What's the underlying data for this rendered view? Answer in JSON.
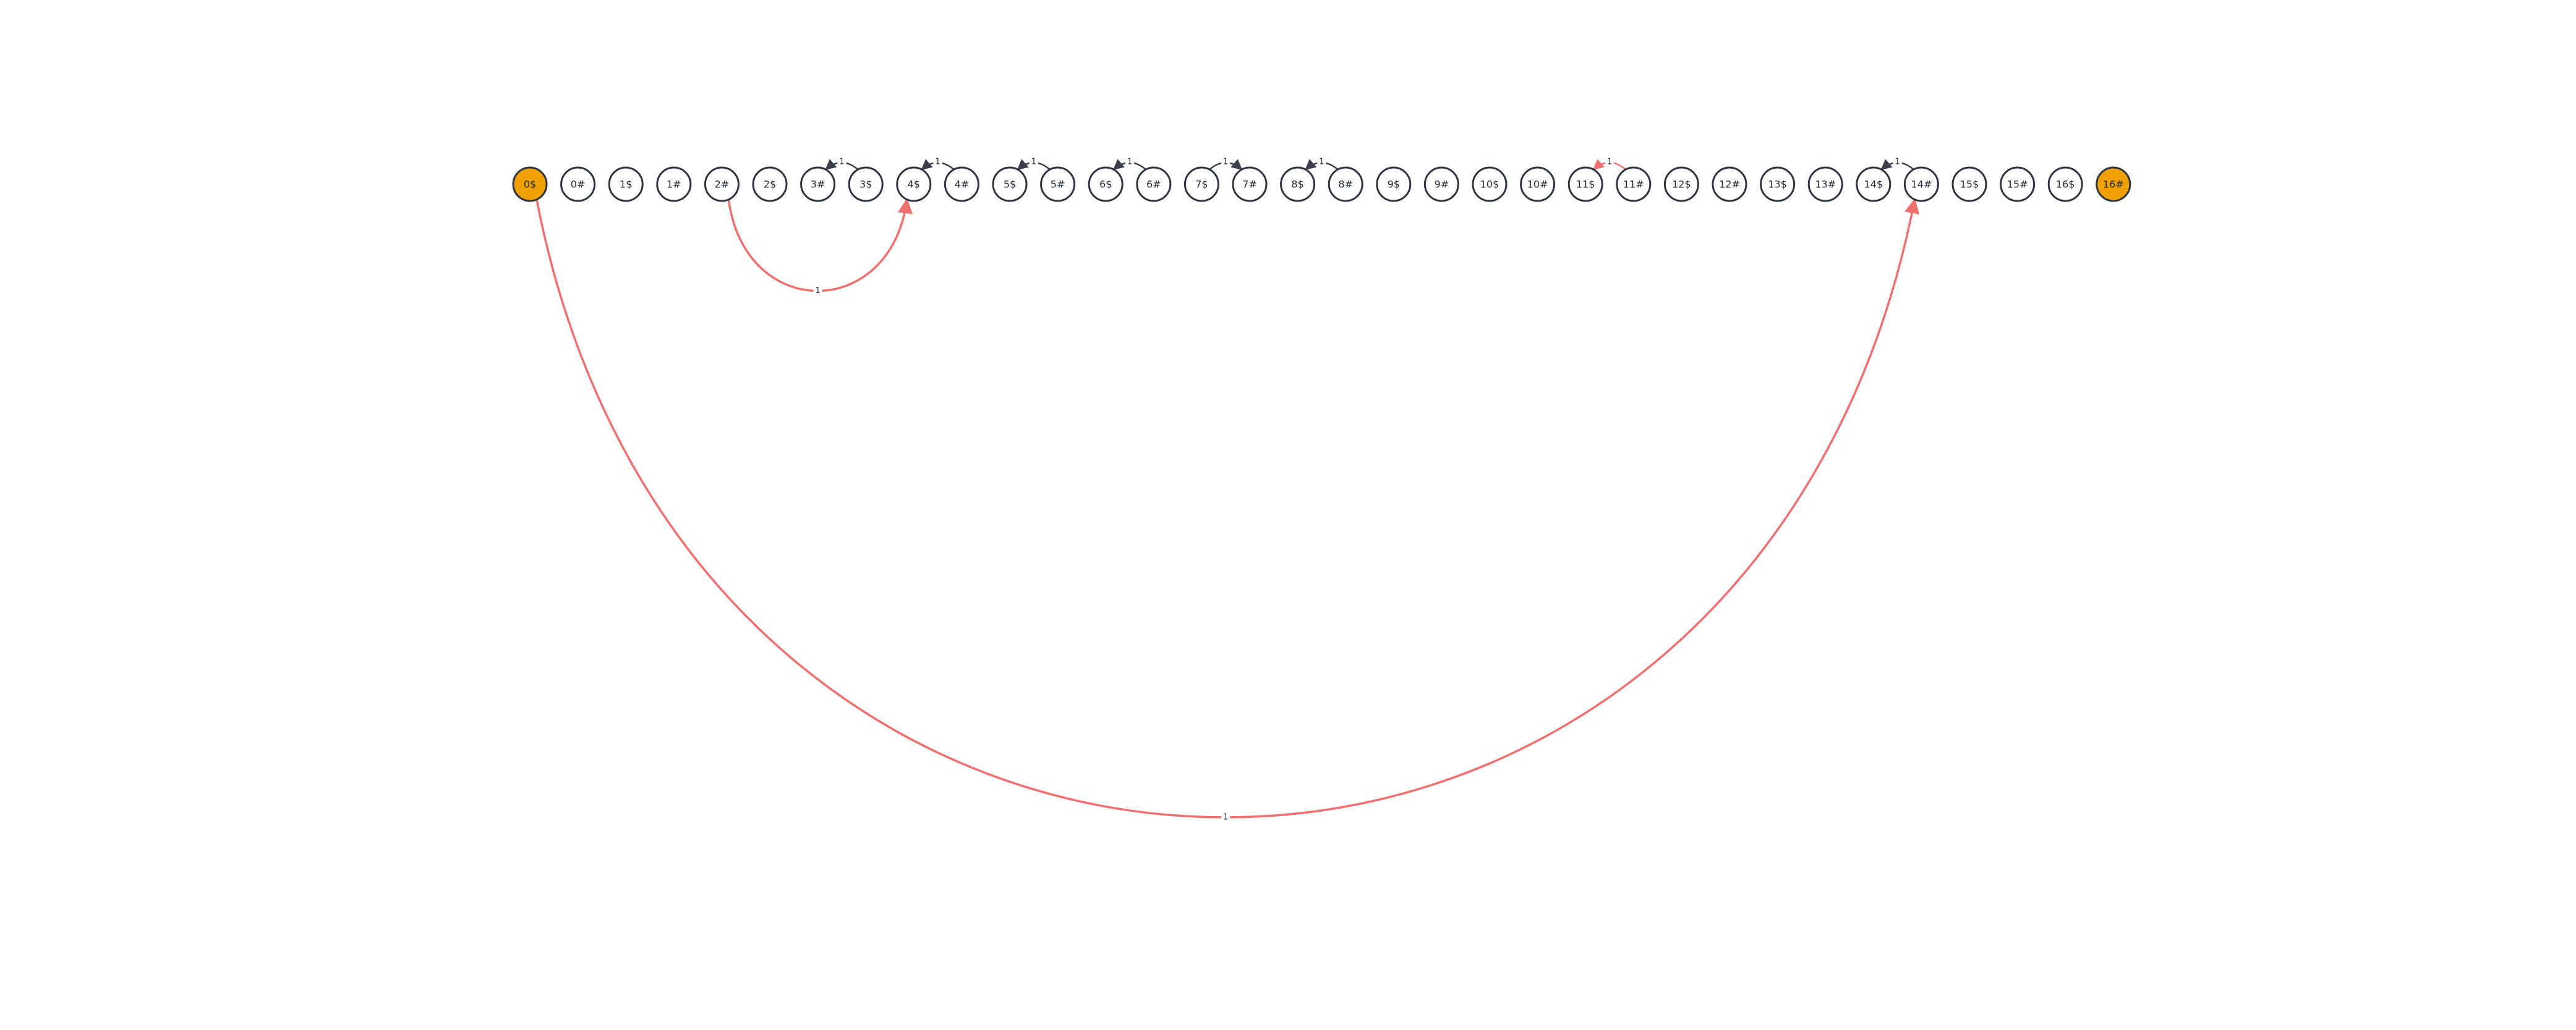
{
  "diagram": {
    "nodes": [
      {
        "id": "0$",
        "label": "0$",
        "highlighted": true
      },
      {
        "id": "0#",
        "label": "0#",
        "highlighted": false
      },
      {
        "id": "1$",
        "label": "1$",
        "highlighted": false
      },
      {
        "id": "1#",
        "label": "1#",
        "highlighted": false
      },
      {
        "id": "2#",
        "label": "2#",
        "highlighted": false
      },
      {
        "id": "2$",
        "label": "2$",
        "highlighted": false
      },
      {
        "id": "3#",
        "label": "3#",
        "highlighted": false
      },
      {
        "id": "3$",
        "label": "3$",
        "highlighted": false
      },
      {
        "id": "4$",
        "label": "4$",
        "highlighted": false
      },
      {
        "id": "4#",
        "label": "4#",
        "highlighted": false
      },
      {
        "id": "5$",
        "label": "5$",
        "highlighted": false
      },
      {
        "id": "5#",
        "label": "5#",
        "highlighted": false
      },
      {
        "id": "6$",
        "label": "6$",
        "highlighted": false
      },
      {
        "id": "6#",
        "label": "6#",
        "highlighted": false
      },
      {
        "id": "7$",
        "label": "7$",
        "highlighted": false
      },
      {
        "id": "7#",
        "label": "7#",
        "highlighted": false
      },
      {
        "id": "8$",
        "label": "8$",
        "highlighted": false
      },
      {
        "id": "8#",
        "label": "8#",
        "highlighted": false
      },
      {
        "id": "9$",
        "label": "9$",
        "highlighted": false
      },
      {
        "id": "9#",
        "label": "9#",
        "highlighted": false
      },
      {
        "id": "10$",
        "label": "10$",
        "highlighted": false
      },
      {
        "id": "10#",
        "label": "10#",
        "highlighted": false
      },
      {
        "id": "11$",
        "label": "11$",
        "highlighted": false
      },
      {
        "id": "11#",
        "label": "11#",
        "highlighted": false
      },
      {
        "id": "12$",
        "label": "12$",
        "highlighted": false
      },
      {
        "id": "12#",
        "label": "12#",
        "highlighted": false
      },
      {
        "id": "13$",
        "label": "13$",
        "highlighted": false
      },
      {
        "id": "13#",
        "label": "13#",
        "highlighted": false
      },
      {
        "id": "14$",
        "label": "14$",
        "highlighted": false
      },
      {
        "id": "14#",
        "label": "14#",
        "highlighted": false
      },
      {
        "id": "15$",
        "label": "15$",
        "highlighted": false
      },
      {
        "id": "15#",
        "label": "15#",
        "highlighted": false
      },
      {
        "id": "16$",
        "label": "16$",
        "highlighted": false
      },
      {
        "id": "16#",
        "label": "16#",
        "highlighted": true
      }
    ],
    "edges": [
      {
        "from": "2#",
        "to": "4$",
        "label": "1",
        "color": "red",
        "side": "below"
      },
      {
        "from": "0$",
        "to": "14#",
        "label": "1",
        "color": "red",
        "side": "below"
      },
      {
        "from": "3$",
        "to": "3#",
        "label": "1",
        "color": "dark",
        "side": "above"
      },
      {
        "from": "4#",
        "to": "4$",
        "label": "1",
        "color": "dark",
        "side": "above"
      },
      {
        "from": "5#",
        "to": "5$",
        "label": "1",
        "color": "dark",
        "side": "above"
      },
      {
        "from": "6#",
        "to": "6$",
        "label": "1",
        "color": "dark",
        "side": "above"
      },
      {
        "from": "7$",
        "to": "7#",
        "label": "1",
        "color": "dark",
        "side": "above"
      },
      {
        "from": "8#",
        "to": "8$",
        "label": "1",
        "color": "dark",
        "side": "above"
      },
      {
        "from": "11#",
        "to": "11$",
        "label": "1",
        "color": "red",
        "side": "above"
      },
      {
        "from": "14#",
        "to": "14$",
        "label": "1",
        "color": "dark",
        "side": "above"
      }
    ],
    "colors": {
      "highlight": "#f0a000",
      "red": "#f07070",
      "dark": "#3a3f4b",
      "node_stroke": "#2e3440"
    }
  }
}
